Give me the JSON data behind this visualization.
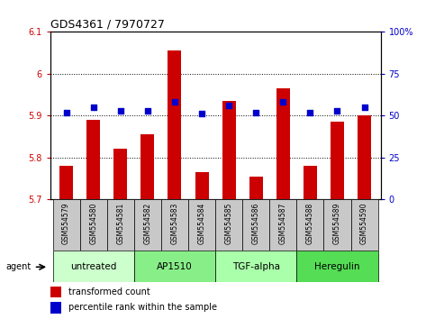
{
  "title": "GDS4361 / 7970727",
  "samples": [
    "GSM554579",
    "GSM554580",
    "GSM554581",
    "GSM554582",
    "GSM554583",
    "GSM554584",
    "GSM554585",
    "GSM554586",
    "GSM554587",
    "GSM554588",
    "GSM554589",
    "GSM554590"
  ],
  "bar_values": [
    5.78,
    5.89,
    5.82,
    5.855,
    6.055,
    5.765,
    5.935,
    5.755,
    5.965,
    5.78,
    5.885,
    5.9
  ],
  "dot_values": [
    52,
    55,
    53,
    53,
    58,
    51,
    56,
    52,
    58,
    52,
    53,
    55
  ],
  "ylim": [
    5.7,
    6.1
  ],
  "y2lim": [
    0,
    100
  ],
  "yticks": [
    5.7,
    5.8,
    5.9,
    6.0,
    6.1
  ],
  "y2ticks": [
    0,
    25,
    50,
    75,
    100
  ],
  "y2ticklabels": [
    "0",
    "25",
    "50",
    "75",
    "100%"
  ],
  "bar_color": "#cc0000",
  "dot_color": "#0000cc",
  "groups": [
    {
      "label": "untreated",
      "start": 0,
      "end": 3
    },
    {
      "label": "AP1510",
      "start": 3,
      "end": 6
    },
    {
      "label": "TGF-alpha",
      "start": 6,
      "end": 9
    },
    {
      "label": "Heregulin",
      "start": 9,
      "end": 12
    }
  ],
  "group_colors": [
    "#ccffcc",
    "#88ee88",
    "#aaffaa",
    "#55dd55"
  ],
  "xlabel_color": "#cc0000",
  "y2label_color": "#0000cc",
  "grid_color": "black",
  "sample_label_bg": "#c8c8c8",
  "legend_bar_label": "transformed count",
  "legend_dot_label": "percentile rank within the sample",
  "agent_label": "agent",
  "title_fontsize": 9,
  "tick_fontsize": 7,
  "sample_fontsize": 5.5,
  "group_fontsize": 7.5,
  "legend_fontsize": 7
}
